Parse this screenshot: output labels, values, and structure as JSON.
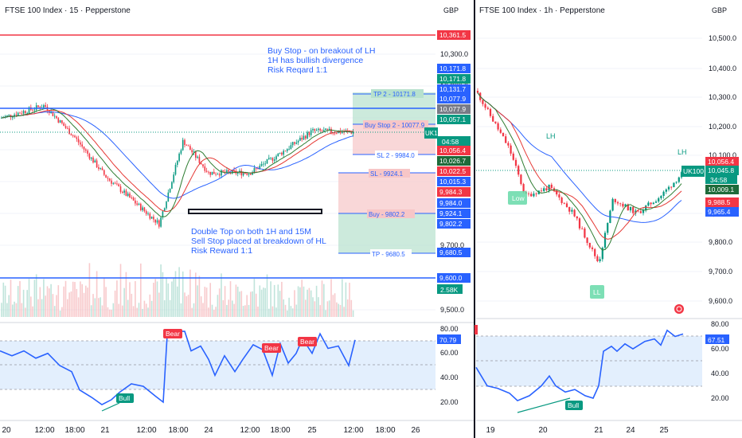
{
  "left_chart": {
    "title": "FTSE 100 Index · 15 · Pepperstone",
    "currency": "GBP",
    "symbol_badge": "UK100",
    "countdown": "04:58",
    "volume_badge": "2.58K",
    "x_ticks": [
      "20",
      "12:00",
      "18:00",
      "21",
      "12:00",
      "18:00",
      "24",
      "12:00",
      "18:00",
      "25",
      "12:00",
      "18:00",
      "26"
    ],
    "y_ticks": [
      "10,300.0",
      "10,200.0",
      "10,100.0",
      "10,000.0",
      "9,900.0",
      "9,800.0",
      "9,700.0",
      "9,600.0",
      "9,500.0"
    ],
    "right_labels": [
      {
        "text": "10,361.5",
        "color": "#f23645"
      },
      {
        "text": "10,171.8",
        "color": "#2962ff"
      },
      {
        "text": "10,171.8",
        "color": "#089981"
      },
      {
        "text": "10,131.7",
        "color": "#2962ff"
      },
      {
        "text": "10,077.9",
        "color": "#2962ff"
      },
      {
        "text": "10,077.9",
        "color": "#787b86"
      },
      {
        "text": "10,057.1",
        "color": "#089981"
      },
      {
        "text": "10,056.4",
        "color": "#f23645"
      },
      {
        "text": "10,026.7",
        "color": "#1e6b3a"
      },
      {
        "text": "10,022.5",
        "color": "#f23645"
      },
      {
        "text": "10,015.3",
        "color": "#2962ff"
      },
      {
        "text": "9,984.3",
        "color": "#f23645"
      },
      {
        "text": "9,984.0",
        "color": "#2962ff"
      },
      {
        "text": "9,924.1",
        "color": "#2962ff"
      },
      {
        "text": "9,802.2",
        "color": "#2962ff"
      },
      {
        "text": "9,680.5",
        "color": "#2962ff"
      },
      {
        "text": "9,600.0",
        "color": "#2962ff"
      }
    ],
    "level_labels": [
      "TP 2 - 10171.8",
      "Buy Stop 2 - 10077.9",
      "SL 2 - 9984.0",
      "SL - 9924.1",
      "Buy - 9802.2",
      "TP - 9680.5"
    ],
    "note_buy": [
      "Buy Stop - on breakout of LH",
      "1H has bullish divergence",
      "Risk Reqard 1:1"
    ],
    "note_sell": [
      "Double Top on both 1H and 15M",
      "Sell Stop placed at breakdown of HL",
      "Risk Reward 1:1"
    ],
    "rsi": {
      "value": "70.79",
      "ticks": [
        "80.00",
        "60.00",
        "40.00",
        "20.00"
      ],
      "labels": [
        "Bear",
        "Bear",
        "Bear",
        "Bull"
      ]
    }
  },
  "right_chart": {
    "title": "FTSE 100 Index · 1h · Pepperstone",
    "currency": "GBP",
    "symbol_badge": "UK100",
    "countdown": "34:58",
    "x_ticks": [
      "19",
      "20",
      "21",
      "24",
      "25"
    ],
    "y_ticks": [
      "10,500.0",
      "10,400.0",
      "10,300.0",
      "10,200.0",
      "10,100.0",
      "9,900.0",
      "9,800.0",
      "9,700.0",
      "9,600.0"
    ],
    "right_labels": [
      {
        "text": "10,056.4",
        "color": "#f23645"
      },
      {
        "text": "10,045.8",
        "color": "#089981"
      },
      {
        "text": "10,009.1",
        "color": "#1e6b3a"
      },
      {
        "text": "9,988.5",
        "color": "#f23645"
      },
      {
        "text": "9,965.4",
        "color": "#2962ff"
      }
    ],
    "chart_tags": [
      "LH",
      "LH",
      "Low",
      "LL"
    ],
    "rsi": {
      "value": "67.51",
      "ticks": [
        "80.00",
        "60.00",
        "40.00",
        "20.00"
      ],
      "label": "Bull"
    }
  },
  "chart_data": [
    {
      "type": "candlestick",
      "title": "FTSE 100 Index · 15 · Pepperstone",
      "ylim": [
        9450,
        10420
      ],
      "levels": {
        "red_resistance": 10361.5,
        "tp2": 10171.8,
        "top_blue": 10131.7,
        "buy_stop_2": 10077.9,
        "sl2": 9984.0,
        "sl": 9924.1,
        "buy": 9802.2,
        "tp": 9680.5,
        "bottom_blue": 9600.0
      },
      "close_path_x": [
        "20",
        "12:00",
        "18:00",
        "21",
        "12:00",
        "18:00",
        "24",
        "12:00",
        "18:00",
        "25",
        "12:00"
      ],
      "close_path_y": [
        10100,
        10140,
        10040,
        9920,
        9790,
        10020,
        9920,
        9930,
        9990,
        10050,
        10057
      ]
    },
    {
      "type": "candlestick",
      "title": "FTSE 100 Index · 1h · Pepperstone",
      "ylim": [
        9540,
        10570
      ],
      "close_path_x": [
        "19",
        "20",
        "21",
        "24",
        "25"
      ],
      "close_path_y": [
        10300,
        10020,
        9750,
        9930,
        10046
      ]
    }
  ]
}
